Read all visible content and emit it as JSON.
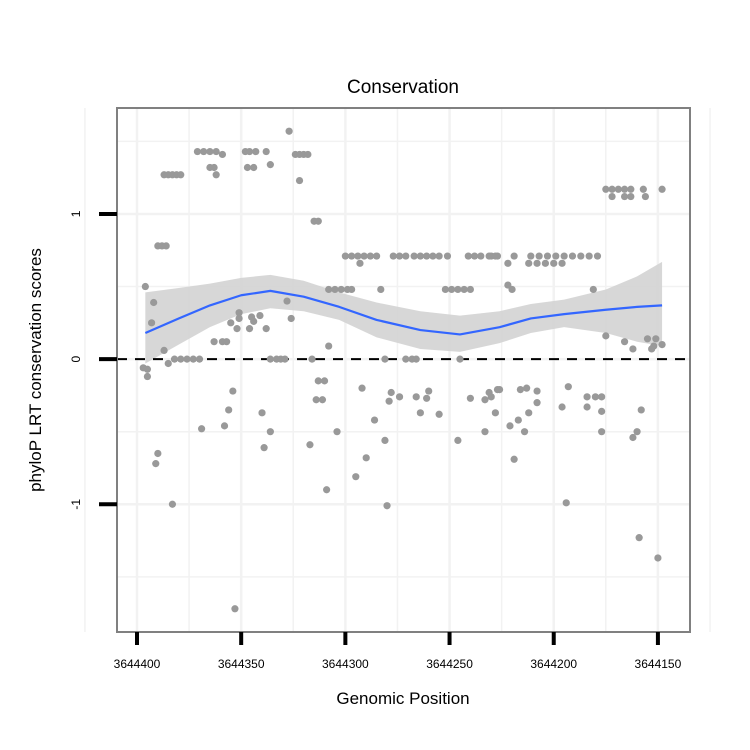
{
  "chart_data": {
    "type": "scatter",
    "title": "Conservation",
    "xlabel": "Genomic Position",
    "ylabel": "phyloP LRT conservation scores",
    "xlim": [
      3644409.6,
      3644134.6
    ],
    "ylim": [
      -1.88,
      1.73
    ],
    "x_reversed": true,
    "x_ticks": [
      3644400,
      3644350,
      3644300,
      3644250,
      3644200,
      3644150
    ],
    "x_tick_labels": [
      "3644400",
      "3644350",
      "3644300",
      "3644250",
      "3644200",
      "3644150"
    ],
    "y_ticks": [
      -1,
      0,
      1
    ],
    "y_tick_labels": [
      "-1",
      "0",
      "1"
    ],
    "grid": true,
    "reference_line": {
      "y": 0,
      "style": "dashed"
    },
    "point_color": "#999999",
    "smooth_color": "#3366FF",
    "band_color": "#D3D3D3",
    "points": [
      [
        3644396,
        0.5
      ],
      [
        3644392,
        0.39
      ],
      [
        3644393,
        0.25
      ],
      [
        3644387,
        0.06
      ],
      [
        3644385,
        -0.03
      ],
      [
        3644397,
        -0.06
      ],
      [
        3644395,
        -0.07
      ],
      [
        3644395,
        -0.12
      ],
      [
        3644390,
        -0.65
      ],
      [
        3644391,
        -0.72
      ],
      [
        3644383,
        -1.0
      ],
      [
        3644387,
        1.27
      ],
      [
        3644385,
        1.27
      ],
      [
        3644383,
        1.27
      ],
      [
        3644381,
        1.27
      ],
      [
        3644379,
        1.27
      ],
      [
        3644390,
        0.78
      ],
      [
        3644388,
        0.78
      ],
      [
        3644386,
        0.78
      ],
      [
        3644382,
        0
      ],
      [
        3644379,
        0
      ],
      [
        3644376,
        0
      ],
      [
        3644373,
        0
      ],
      [
        3644370,
        0
      ],
      [
        3644371,
        1.43
      ],
      [
        3644368,
        1.43
      ],
      [
        3644365,
        1.43
      ],
      [
        3644362,
        1.43
      ],
      [
        3644359,
        1.41
      ],
      [
        3644365,
        1.32
      ],
      [
        3644363,
        1.32
      ],
      [
        3644362,
        1.27
      ],
      [
        3644348,
        1.43
      ],
      [
        3644346,
        1.43
      ],
      [
        3644343,
        1.43
      ],
      [
        3644338,
        1.43
      ],
      [
        3644336,
        1.34
      ],
      [
        3644347,
        1.32
      ],
      [
        3644344,
        1.32
      ],
      [
        3644327,
        1.57
      ],
      [
        3644324,
        1.41
      ],
      [
        3644322,
        1.41
      ],
      [
        3644320,
        1.41
      ],
      [
        3644318,
        1.41
      ],
      [
        3644322,
        1.23
      ],
      [
        3644315,
        0.95
      ],
      [
        3644313,
        0.95
      ],
      [
        3644328,
        0.4
      ],
      [
        3644326,
        0.28
      ],
      [
        3644351,
        0.32
      ],
      [
        3644351,
        0.28
      ],
      [
        3644355,
        0.25
      ],
      [
        3644352,
        0.21
      ],
      [
        3644345,
        0.29
      ],
      [
        3644344,
        0.26
      ],
      [
        3644341,
        0.3
      ],
      [
        3644338,
        0.21
      ],
      [
        3644346,
        0.21
      ],
      [
        3644363,
        0.12
      ],
      [
        3644359,
        0.12
      ],
      [
        3644357,
        0.12
      ],
      [
        3644336,
        0
      ],
      [
        3644333,
        0
      ],
      [
        3644331,
        0
      ],
      [
        3644329,
        0
      ],
      [
        3644316,
        0
      ],
      [
        3644354,
        -0.22
      ],
      [
        3644356,
        -0.35
      ],
      [
        3644369,
        -0.48
      ],
      [
        3644358,
        -0.46
      ],
      [
        3644340,
        -0.37
      ],
      [
        3644336,
        -0.5
      ],
      [
        3644339,
        -0.61
      ],
      [
        3644317,
        -0.59
      ],
      [
        3644353,
        -1.72
      ],
      [
        3644313,
        -0.15
      ],
      [
        3644314,
        -0.28
      ],
      [
        3644300,
        0.71
      ],
      [
        3644297,
        0.71
      ],
      [
        3644294,
        0.71
      ],
      [
        3644291,
        0.71
      ],
      [
        3644288,
        0.71
      ],
      [
        3644285,
        0.71
      ],
      [
        3644293,
        0.66
      ],
      [
        3644277,
        0.71
      ],
      [
        3644274,
        0.71
      ],
      [
        3644271,
        0.71
      ],
      [
        3644267,
        0.71
      ],
      [
        3644264,
        0.71
      ],
      [
        3644261,
        0.71
      ],
      [
        3644258,
        0.71
      ],
      [
        3644255,
        0.71
      ],
      [
        3644251,
        0.71
      ],
      [
        3644241,
        0.71
      ],
      [
        3644238,
        0.71
      ],
      [
        3644235,
        0.71
      ],
      [
        3644231,
        0.71
      ],
      [
        3644227,
        0.71
      ],
      [
        3644308,
        0.48
      ],
      [
        3644305,
        0.48
      ],
      [
        3644302,
        0.48
      ],
      [
        3644299,
        0.48
      ],
      [
        3644297,
        0.48
      ],
      [
        3644283,
        0.48
      ],
      [
        3644252,
        0.48
      ],
      [
        3644249,
        0.48
      ],
      [
        3644246,
        0.48
      ],
      [
        3644243,
        0.48
      ],
      [
        3644240,
        0.48
      ],
      [
        3644308,
        0.09
      ],
      [
        3644281,
        0
      ],
      [
        3644271,
        0
      ],
      [
        3644268,
        0
      ],
      [
        3644266,
        0
      ],
      [
        3644245,
        0
      ],
      [
        3644310,
        -0.15
      ],
      [
        3644311,
        -0.28
      ],
      [
        3644292,
        -0.2
      ],
      [
        3644278,
        -0.23
      ],
      [
        3644274,
        -0.26
      ],
      [
        3644279,
        -0.29
      ],
      [
        3644266,
        -0.26
      ],
      [
        3644261,
        -0.27
      ],
      [
        3644260,
        -0.22
      ],
      [
        3644264,
        -0.37
      ],
      [
        3644255,
        -0.38
      ],
      [
        3644286,
        -0.42
      ],
      [
        3644304,
        -0.5
      ],
      [
        3644281,
        -0.56
      ],
      [
        3644290,
        -0.68
      ],
      [
        3644295,
        -0.81
      ],
      [
        3644309,
        -0.9
      ],
      [
        3644280,
        -1.01
      ],
      [
        3644246,
        -0.56
      ],
      [
        3644240,
        -0.27
      ],
      [
        3644233,
        -0.28
      ],
      [
        3644231,
        -0.23
      ],
      [
        3644227,
        -0.21
      ],
      [
        3644228,
        -0.37
      ],
      [
        3644233,
        -0.5
      ],
      [
        3644230,
        0.71
      ],
      [
        3644228,
        0.71
      ],
      [
        3644219,
        0.71
      ],
      [
        3644222,
        0.66
      ],
      [
        3644211,
        0.71
      ],
      [
        3644207,
        0.71
      ],
      [
        3644203,
        0.71
      ],
      [
        3644199,
        0.71
      ],
      [
        3644195,
        0.71
      ],
      [
        3644191,
        0.71
      ],
      [
        3644187,
        0.71
      ],
      [
        3644183,
        0.71
      ],
      [
        3644179,
        0.71
      ],
      [
        3644212,
        0.66
      ],
      [
        3644208,
        0.66
      ],
      [
        3644204,
        0.66
      ],
      [
        3644200,
        0.66
      ],
      [
        3644196,
        0.66
      ],
      [
        3644222,
        0.51
      ],
      [
        3644220,
        0.48
      ],
      [
        3644181,
        0.48
      ],
      [
        3644175,
        1.17
      ],
      [
        3644172,
        1.17
      ],
      [
        3644169,
        1.17
      ],
      [
        3644166,
        1.17
      ],
      [
        3644163,
        1.17
      ],
      [
        3644157,
        1.17
      ],
      [
        3644148,
        1.17
      ],
      [
        3644172,
        1.12
      ],
      [
        3644166,
        1.12
      ],
      [
        3644163,
        1.12
      ],
      [
        3644156,
        1.12
      ],
      [
        3644175,
        0.16
      ],
      [
        3644166,
        0.12
      ],
      [
        3644162,
        0.07
      ],
      [
        3644155,
        0.14
      ],
      [
        3644151,
        0.14
      ],
      [
        3644152,
        0.09
      ],
      [
        3644148,
        0.1
      ],
      [
        3644153,
        0.07
      ],
      [
        3644226,
        -0.21
      ],
      [
        3644230,
        -0.26
      ],
      [
        3644216,
        -0.21
      ],
      [
        3644213,
        -0.2
      ],
      [
        3644208,
        -0.22
      ],
      [
        3644208,
        -0.3
      ],
      [
        3644212,
        -0.37
      ],
      [
        3644221,
        -0.46
      ],
      [
        3644217,
        -0.42
      ],
      [
        3644214,
        -0.5
      ],
      [
        3644219,
        -0.69
      ],
      [
        3644193,
        -0.19
      ],
      [
        3644196,
        -0.33
      ],
      [
        3644184,
        -0.33
      ],
      [
        3644184,
        -0.26
      ],
      [
        3644180,
        -0.26
      ],
      [
        3644177,
        -0.26
      ],
      [
        3644177,
        -0.36
      ],
      [
        3644177,
        -0.5
      ],
      [
        3644158,
        -0.35
      ],
      [
        3644160,
        -0.5
      ],
      [
        3644162,
        -0.54
      ],
      [
        3644194,
        -0.99
      ],
      [
        3644159,
        -1.23
      ],
      [
        3644150,
        -1.37
      ]
    ],
    "smooth": {
      "x": [
        3644396,
        3644380,
        3644365,
        3644350,
        3644336,
        3644320,
        3644303,
        3644285,
        3644264,
        3644245,
        3644226,
        3644211,
        3644195,
        3644175,
        3644160,
        3644148
      ],
      "y": [
        0.18,
        0.28,
        0.37,
        0.44,
        0.47,
        0.43,
        0.36,
        0.27,
        0.2,
        0.17,
        0.22,
        0.28,
        0.31,
        0.34,
        0.36,
        0.37
      ],
      "lower": [
        -0.03,
        0.1,
        0.22,
        0.31,
        0.35,
        0.33,
        0.27,
        0.15,
        0.07,
        0.05,
        0.11,
        0.18,
        0.22,
        0.18,
        0.12,
        0.09
      ],
      "upper": [
        0.46,
        0.49,
        0.52,
        0.56,
        0.58,
        0.54,
        0.46,
        0.39,
        0.33,
        0.3,
        0.33,
        0.38,
        0.41,
        0.48,
        0.57,
        0.67
      ]
    }
  }
}
